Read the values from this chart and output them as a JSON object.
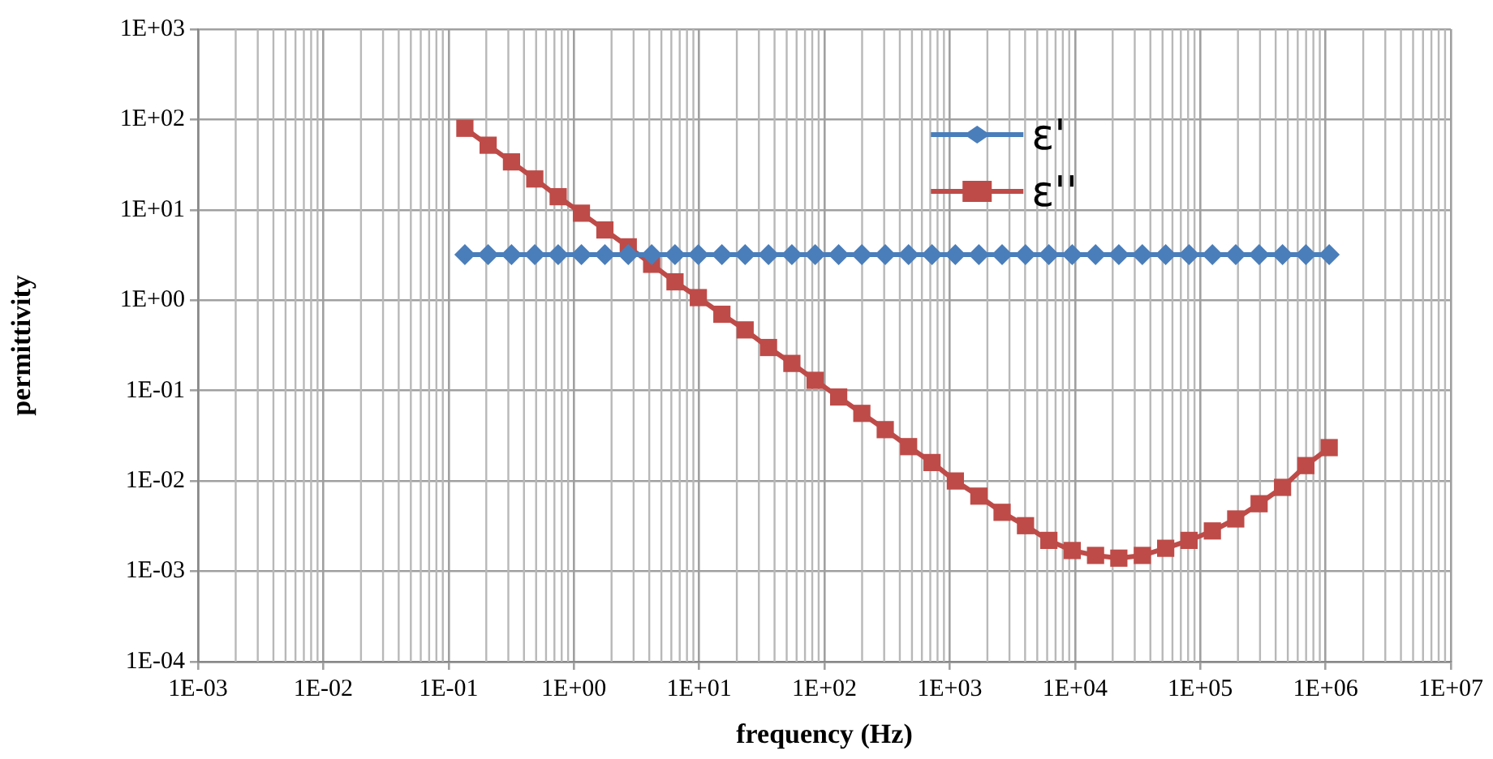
{
  "chart_data": {
    "type": "line",
    "xlabel": "frequency (Hz)",
    "ylabel": "permittivity",
    "log": "xy",
    "grid": true,
    "legend": "top right",
    "xlim": [
      0.001,
      10000000
    ],
    "ylim": [
      0.0001,
      1000
    ],
    "xticks": [
      {
        "value": 0.001,
        "label": "1E-03"
      },
      {
        "value": 0.01,
        "label": "1E-02"
      },
      {
        "value": 0.1,
        "label": "1E-01"
      },
      {
        "value": 1,
        "label": "1E+00"
      },
      {
        "value": 10,
        "label": "1E+01"
      },
      {
        "value": 100,
        "label": "1E+02"
      },
      {
        "value": 1000,
        "label": "1E+03"
      },
      {
        "value": 10000,
        "label": "1E+04"
      },
      {
        "value": 100000,
        "label": "1E+05"
      },
      {
        "value": 1000000,
        "label": "1E+06"
      },
      {
        "value": 10000000,
        "label": "1E+07"
      }
    ],
    "yticks": [
      {
        "value": 0.0001,
        "label": "1E-04"
      },
      {
        "value": 0.001,
        "label": "1E-03"
      },
      {
        "value": 0.01,
        "label": "1E-02"
      },
      {
        "value": 0.1,
        "label": "1E-01"
      },
      {
        "value": 1,
        "label": "1E+00"
      },
      {
        "value": 10,
        "label": "1E+01"
      },
      {
        "value": 100,
        "label": "1E+02"
      },
      {
        "value": 1000,
        "label": "1E+03"
      }
    ],
    "x": [
      0.135,
      0.207,
      0.318,
      0.488,
      0.75,
      1.15,
      1.77,
      2.72,
      4.18,
      6.42,
      9.86,
      15.2,
      23.3,
      35.8,
      55,
      84.4,
      130,
      199,
      306,
      470,
      723,
      1110,
      1710,
      2620,
      4030,
      6190,
      9510,
      14600,
      22400,
      34500,
      53000,
      81400,
      125000,
      192000,
      295000,
      454000,
      697000,
      1070000
    ],
    "series": [
      {
        "name": "ε'",
        "color": "#4a7ebb",
        "marker": "diamond",
        "values": [
          3.2,
          3.2,
          3.2,
          3.2,
          3.2,
          3.2,
          3.2,
          3.2,
          3.2,
          3.2,
          3.2,
          3.2,
          3.2,
          3.2,
          3.2,
          3.2,
          3.2,
          3.2,
          3.2,
          3.2,
          3.2,
          3.2,
          3.2,
          3.2,
          3.2,
          3.2,
          3.2,
          3.2,
          3.2,
          3.2,
          3.2,
          3.2,
          3.2,
          3.2,
          3.2,
          3.2,
          3.2,
          3.2
        ]
      },
      {
        "name": "ε''",
        "color": "#be4b48",
        "marker": "square",
        "values": [
          80,
          52,
          34,
          22,
          14,
          9.2,
          6.0,
          3.9,
          2.5,
          1.6,
          1.07,
          0.7,
          0.47,
          0.3,
          0.2,
          0.13,
          0.085,
          0.056,
          0.037,
          0.024,
          0.016,
          0.01,
          0.0068,
          0.0045,
          0.0032,
          0.0022,
          0.0017,
          0.0015,
          0.0014,
          0.0015,
          0.0018,
          0.0022,
          0.0028,
          0.0038,
          0.0056,
          0.0085,
          0.0148,
          0.0234
        ]
      }
    ]
  }
}
